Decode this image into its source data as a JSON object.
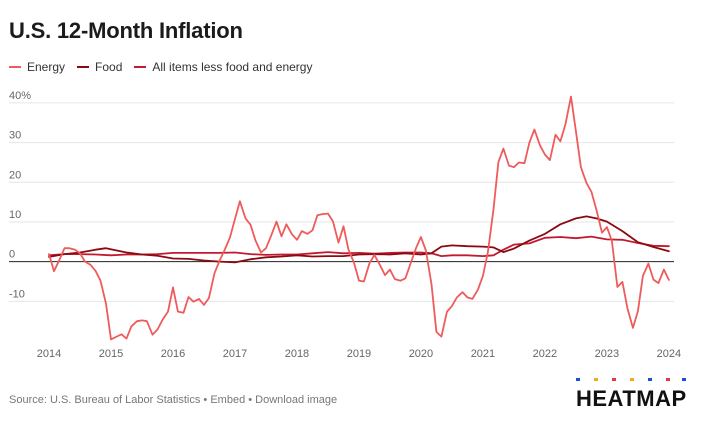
{
  "title": "U.S. 12-Month Inflation",
  "footer": "Source: U.S. Bureau of Labor Statistics • Embed • Download image",
  "brand": "HEATMAP",
  "colors": {
    "energy": "#ef5b5b",
    "food": "#8b0a12",
    "core": "#c21a2e",
    "grid": "#e6e6e6",
    "zero": "#222222"
  },
  "chart_data": {
    "type": "line",
    "title": "U.S. 12-Month Inflation",
    "y_unit": "%",
    "ylim": [
      -20,
      42
    ],
    "xlim": [
      2014.0,
      2024.05
    ],
    "yticks": [
      -10,
      0,
      10,
      20,
      30,
      40
    ],
    "ytick_labels": [
      "-10",
      "0",
      "10",
      "20",
      "30",
      "40%"
    ],
    "xticks": [
      "2014",
      "2015",
      "2016",
      "2017",
      "2018",
      "2019",
      "2020",
      "2021",
      "2022",
      "2023",
      "2024"
    ],
    "grid": true,
    "legend_position": "top-left",
    "series": [
      {
        "name": "Energy",
        "color": "#ef5b5b",
        "x": [
          2014.0,
          2014.08,
          2014.17,
          2014.25,
          2014.33,
          2014.42,
          2014.5,
          2014.58,
          2014.67,
          2014.75,
          2014.83,
          2014.92,
          2015.0,
          2015.08,
          2015.17,
          2015.25,
          2015.33,
          2015.42,
          2015.5,
          2015.58,
          2015.67,
          2015.75,
          2015.83,
          2015.92,
          2016.0,
          2016.08,
          2016.17,
          2016.25,
          2016.33,
          2016.42,
          2016.5,
          2016.58,
          2016.67,
          2016.75,
          2016.83,
          2016.92,
          2017.0,
          2017.08,
          2017.17,
          2017.25,
          2017.33,
          2017.42,
          2017.5,
          2017.58,
          2017.67,
          2017.75,
          2017.83,
          2017.92,
          2018.0,
          2018.08,
          2018.17,
          2018.25,
          2018.33,
          2018.42,
          2018.5,
          2018.58,
          2018.67,
          2018.75,
          2018.83,
          2018.92,
          2019.0,
          2019.08,
          2019.17,
          2019.25,
          2019.33,
          2019.42,
          2019.5,
          2019.58,
          2019.67,
          2019.75,
          2019.83,
          2019.92,
          2020.0,
          2020.08,
          2020.17,
          2020.25,
          2020.33,
          2020.42,
          2020.5,
          2020.58,
          2020.67,
          2020.75,
          2020.83,
          2020.92,
          2021.0,
          2021.08,
          2021.17,
          2021.25,
          2021.33,
          2021.42,
          2021.5,
          2021.58,
          2021.67,
          2021.75,
          2021.83,
          2021.92,
          2022.0,
          2022.08,
          2022.17,
          2022.25,
          2022.33,
          2022.42,
          2022.5,
          2022.58,
          2022.67,
          2022.75,
          2022.83,
          2022.92,
          2023.0,
          2023.08,
          2023.17,
          2023.25,
          2023.33,
          2023.42,
          2023.5,
          2023.58,
          2023.67,
          2023.75,
          2023.83,
          2023.92,
          2024.0
        ],
        "values": [
          1.9,
          -2.4,
          0.5,
          3.4,
          3.4,
          3.0,
          2.1,
          0.0,
          -0.8,
          -2.3,
          -4.8,
          -10.6,
          -19.6,
          -19.0,
          -18.3,
          -19.4,
          -16.3,
          -15.0,
          -14.8,
          -15.0,
          -18.4,
          -17.1,
          -14.7,
          -12.6,
          -6.5,
          -12.6,
          -12.9,
          -8.9,
          -10.1,
          -9.4,
          -10.9,
          -9.2,
          -2.9,
          0.2,
          2.8,
          6.1,
          10.8,
          15.2,
          10.9,
          9.3,
          5.4,
          2.3,
          3.4,
          6.4,
          10.1,
          6.4,
          9.4,
          6.9,
          5.5,
          7.7,
          7.0,
          7.9,
          11.7,
          12.0,
          12.1,
          10.2,
          4.8,
          8.9,
          3.1,
          -0.3,
          -4.8,
          -5.0,
          -0.4,
          1.7,
          -0.6,
          -3.4,
          -2.0,
          -4.4,
          -4.8,
          -4.2,
          -0.6,
          3.4,
          6.2,
          2.8,
          -5.7,
          -17.7,
          -18.9,
          -12.6,
          -11.2,
          -9.0,
          -7.7,
          -9.0,
          -9.4,
          -7.0,
          -3.6,
          2.4,
          13.2,
          25.1,
          28.5,
          24.2,
          23.8,
          25.0,
          24.8,
          30.0,
          33.3,
          29.3,
          27.0,
          25.6,
          32.0,
          30.3,
          34.6,
          41.6,
          32.9,
          23.8,
          19.8,
          17.6,
          13.1,
          7.3,
          8.7,
          5.2,
          -6.4,
          -5.1,
          -11.7,
          -16.7,
          -12.5,
          -3.6,
          -0.5,
          -4.5,
          -5.4,
          -2.0,
          -4.6
        ],
        "min": -19.6,
        "max": 41.6
      },
      {
        "name": "Food",
        "color": "#8b0a12",
        "x": [
          2014.0,
          2014.25,
          2014.5,
          2014.75,
          2014.92,
          2015.25,
          2015.5,
          2015.75,
          2016.0,
          2016.25,
          2016.5,
          2016.75,
          2017.0,
          2017.25,
          2017.5,
          2017.75,
          2018.0,
          2018.25,
          2018.5,
          2018.75,
          2019.0,
          2019.25,
          2019.5,
          2019.75,
          2020.0,
          2020.17,
          2020.33,
          2020.5,
          2020.75,
          2021.0,
          2021.17,
          2021.33,
          2021.5,
          2021.75,
          2022.0,
          2022.25,
          2022.5,
          2022.67,
          2022.83,
          2023.0,
          2023.25,
          2023.5,
          2023.75,
          2024.0
        ],
        "values": [
          1.2,
          1.9,
          2.3,
          3.0,
          3.4,
          2.3,
          1.8,
          1.5,
          0.8,
          0.7,
          0.3,
          0.0,
          -0.2,
          0.6,
          1.1,
          1.3,
          1.6,
          1.3,
          1.4,
          1.4,
          1.8,
          1.9,
          1.8,
          2.1,
          1.8,
          2.1,
          3.8,
          4.1,
          3.9,
          3.8,
          3.6,
          2.4,
          3.3,
          5.3,
          7.0,
          9.4,
          10.9,
          11.4,
          10.9,
          10.1,
          7.7,
          4.9,
          3.7,
          2.6
        ],
        "min": -0.2,
        "max": 11.4
      },
      {
        "name": "All items less food and energy",
        "color": "#c21a2e",
        "x": [
          2014.0,
          2014.25,
          2014.5,
          2014.75,
          2015.0,
          2015.25,
          2015.5,
          2015.75,
          2016.0,
          2016.25,
          2016.5,
          2016.75,
          2017.0,
          2017.25,
          2017.5,
          2017.75,
          2018.0,
          2018.25,
          2018.5,
          2018.75,
          2019.0,
          2019.25,
          2019.5,
          2019.75,
          2020.0,
          2020.17,
          2020.33,
          2020.5,
          2020.75,
          2021.0,
          2021.17,
          2021.33,
          2021.5,
          2021.75,
          2022.0,
          2022.25,
          2022.5,
          2022.75,
          2023.0,
          2023.25,
          2023.5,
          2023.75,
          2024.0
        ],
        "values": [
          1.6,
          1.9,
          1.9,
          1.8,
          1.6,
          1.8,
          1.8,
          1.9,
          2.2,
          2.2,
          2.2,
          2.2,
          2.3,
          1.9,
          1.7,
          1.8,
          1.8,
          2.1,
          2.4,
          2.1,
          2.2,
          2.0,
          2.2,
          2.3,
          2.3,
          2.1,
          1.4,
          1.6,
          1.6,
          1.4,
          1.6,
          3.0,
          4.3,
          4.6,
          6.0,
          6.2,
          5.9,
          6.3,
          5.6,
          5.5,
          4.7,
          4.0,
          3.9
        ],
        "min": 1.4,
        "max": 6.3
      }
    ]
  }
}
